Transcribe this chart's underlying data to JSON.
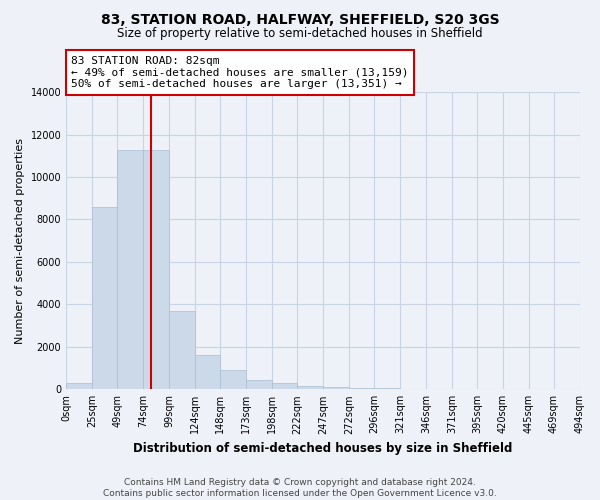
{
  "title": "83, STATION ROAD, HALFWAY, SHEFFIELD, S20 3GS",
  "subtitle": "Size of property relative to semi-detached houses in Sheffield",
  "xlabel": "Distribution of semi-detached houses by size in Sheffield",
  "ylabel": "Number of semi-detached properties",
  "footer1": "Contains HM Land Registry data © Crown copyright and database right 2024.",
  "footer2": "Contains public sector information licensed under the Open Government Licence v3.0.",
  "property_size": 82,
  "property_label": "83 STATION ROAD: 82sqm",
  "annotation_line1": "← 49% of semi-detached houses are smaller (13,159)",
  "annotation_line2": "50% of semi-detached houses are larger (13,351) →",
  "bar_left_edges": [
    0,
    25,
    49,
    74,
    99,
    124,
    148,
    173,
    198,
    222,
    247,
    272,
    296,
    321,
    346,
    371,
    395,
    420,
    445,
    469
  ],
  "bar_widths": [
    25,
    24,
    25,
    25,
    25,
    24,
    25,
    25,
    24,
    25,
    25,
    24,
    25,
    25,
    25,
    24,
    25,
    25,
    24,
    25
  ],
  "bar_heights": [
    310,
    8600,
    11250,
    11250,
    3700,
    1600,
    900,
    420,
    290,
    150,
    100,
    80,
    40,
    10,
    5,
    2,
    1,
    0,
    0,
    0
  ],
  "tick_labels": [
    "0sqm",
    "25sqm",
    "49sqm",
    "74sqm",
    "99sqm",
    "124sqm",
    "148sqm",
    "173sqm",
    "198sqm",
    "222sqm",
    "247sqm",
    "272sqm",
    "296sqm",
    "321sqm",
    "346sqm",
    "371sqm",
    "395sqm",
    "420sqm",
    "445sqm",
    "469sqm",
    "494sqm"
  ],
  "bar_color": "#ccd9e8",
  "bar_edge_color": "#aabdd4",
  "red_line_color": "#cc0000",
  "annotation_box_edge_color": "#cc0000",
  "grid_color": "#c8d4e4",
  "background_color": "#eef2f8",
  "ylim": [
    0,
    14000
  ],
  "yticks": [
    0,
    2000,
    4000,
    6000,
    8000,
    10000,
    12000,
    14000
  ],
  "title_fontsize": 10,
  "subtitle_fontsize": 8.5,
  "ylabel_fontsize": 8,
  "xlabel_fontsize": 8.5,
  "annotation_fontsize": 8,
  "footer_fontsize": 6.5,
  "tick_fontsize": 7
}
